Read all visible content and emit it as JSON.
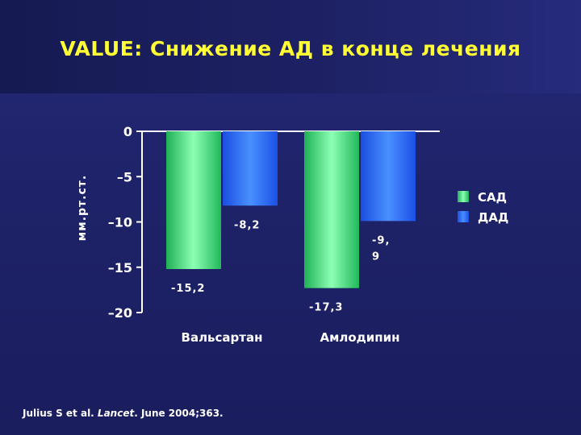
{
  "title": "VALUE: Снижение АД в конце лечения",
  "footer": {
    "prefix": "Julius S et al. ",
    "journal": "Lancet",
    "suffix": ". June 2004;363."
  },
  "chart_data": {
    "type": "bar",
    "categories": [
      "Вальсартан",
      "Амлодипин"
    ],
    "series": [
      {
        "name": "САД",
        "values": [
          -15.2,
          -17.3
        ],
        "labels": [
          "-15,2",
          "-17,3"
        ],
        "color": "#3ee07a"
      },
      {
        "name": "ДАД",
        "values": [
          -8.2,
          -9.9
        ],
        "labels": [
          "-8,2",
          "-9,\n9"
        ],
        "color": "#2a6cff"
      }
    ],
    "ylabel": "мм.рт.ст.",
    "ylim": [
      -20,
      0
    ],
    "yticks": [
      0,
      -5,
      -10,
      -15,
      -20
    ],
    "ytick_labels": [
      "0",
      "–5",
      "–10",
      "–15",
      "–20"
    ],
    "legend": "right",
    "grid": false
  }
}
